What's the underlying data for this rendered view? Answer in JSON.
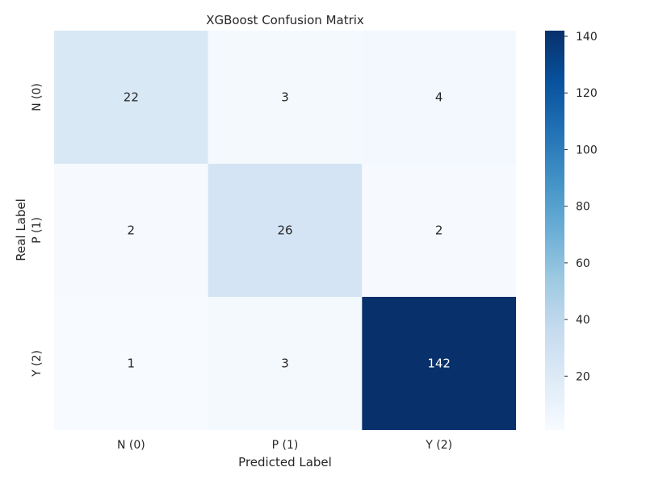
{
  "chart_data": {
    "type": "heatmap",
    "title": "XGBoost Confusion Matrix",
    "xlabel": "Predicted Label",
    "ylabel": "Real Label",
    "x_categories": [
      "N (0)",
      "P (1)",
      "Y (2)"
    ],
    "y_categories": [
      "N (0)",
      "P (1)",
      "Y (2)"
    ],
    "values": [
      [
        22,
        3,
        4
      ],
      [
        2,
        26,
        2
      ],
      [
        1,
        3,
        142
      ]
    ],
    "colormap": "Blues",
    "colorbar": {
      "range": [
        1,
        142
      ],
      "ticks": [
        20,
        40,
        60,
        80,
        100,
        120,
        140
      ]
    }
  }
}
